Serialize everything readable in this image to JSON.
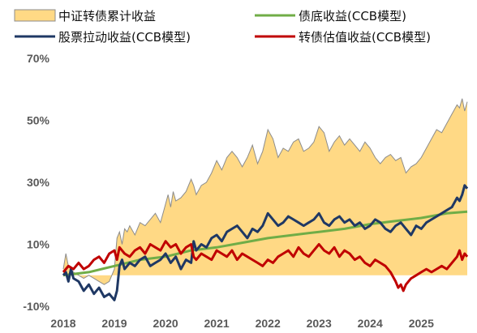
{
  "chart_data": {
    "type": "line",
    "x_ticks": [
      "2018",
      "2019",
      "2020",
      "2021",
      "2022",
      "2023",
      "2024",
      "2025"
    ],
    "y_ticks": [
      "70%",
      "50%",
      "30%",
      "10%",
      "-10%"
    ],
    "ylim": [
      -10,
      70
    ],
    "xlim": [
      2018.0,
      2025.9
    ],
    "grid": false,
    "legend_position": "top",
    "series": [
      {
        "name": "中证转债累计收益",
        "style": "area",
        "fill": "#ffd985",
        "stroke": "#8c8c8c",
        "x": [
          2018.0,
          2018.05,
          2018.1,
          2018.2,
          2018.3,
          2018.4,
          2018.5,
          2018.6,
          2018.7,
          2018.8,
          2018.9,
          2019.0,
          2019.05,
          2019.1,
          2019.15,
          2019.2,
          2019.25,
          2019.3,
          2019.4,
          2019.5,
          2019.6,
          2019.7,
          2019.8,
          2019.9,
          2020.0,
          2020.05,
          2020.1,
          2020.15,
          2020.2,
          2020.3,
          2020.4,
          2020.5,
          2020.55,
          2020.6,
          2020.7,
          2020.8,
          2020.9,
          2021.0,
          2021.1,
          2021.2,
          2021.3,
          2021.4,
          2021.5,
          2021.6,
          2021.7,
          2021.8,
          2021.9,
          2022.0,
          2022.1,
          2022.2,
          2022.3,
          2022.4,
          2022.5,
          2022.6,
          2022.7,
          2022.8,
          2022.9,
          2023.0,
          2023.1,
          2023.2,
          2023.3,
          2023.4,
          2023.5,
          2023.6,
          2023.7,
          2023.8,
          2023.9,
          2024.0,
          2024.1,
          2024.2,
          2024.3,
          2024.4,
          2024.5,
          2024.6,
          2024.7,
          2024.8,
          2024.9,
          2025.0,
          2025.1,
          2025.2,
          2025.3,
          2025.4,
          2025.5,
          2025.6,
          2025.7,
          2025.75,
          2025.8,
          2025.85,
          2025.9
        ],
        "values": [
          2,
          7,
          3,
          1,
          0,
          -1,
          0,
          -1,
          -2,
          -3,
          -2,
          2,
          12,
          14,
          10,
          15,
          14,
          16,
          13,
          17,
          16,
          18,
          20,
          17,
          23,
          26,
          22,
          27,
          24,
          25,
          27,
          31,
          29,
          26,
          29,
          30,
          33,
          37,
          34,
          38,
          40,
          38,
          35,
          38,
          42,
          36,
          40,
          47,
          44,
          38,
          41,
          40,
          43,
          44,
          40,
          41,
          43,
          48,
          46,
          40,
          43,
          45,
          42,
          44,
          42,
          40,
          43,
          41,
          38,
          36,
          38,
          39,
          37,
          38,
          33,
          35,
          36,
          38,
          41,
          44,
          47,
          46,
          49,
          52,
          55,
          54,
          57,
          53,
          56
        ]
      },
      {
        "name": "债底收益(CCB模型)",
        "style": "line",
        "color": "#70ad47",
        "x": [
          2018.0,
          2018.5,
          2019.0,
          2019.5,
          2020.0,
          2020.5,
          2021.0,
          2021.5,
          2022.0,
          2022.5,
          2023.0,
          2023.5,
          2024.0,
          2024.5,
          2025.0,
          2025.5,
          2025.9
        ],
        "values": [
          0,
          1,
          3,
          5,
          6,
          8,
          9,
          10.5,
          12,
          13,
          14,
          15,
          16.5,
          17.5,
          18.5,
          20,
          20.5
        ]
      },
      {
        "name": "股票拉动收益(CCB模型)",
        "style": "line",
        "color": "#1f3864",
        "x": [
          2018.0,
          2018.05,
          2018.1,
          2018.15,
          2018.2,
          2018.3,
          2018.4,
          2018.5,
          2018.6,
          2018.7,
          2018.8,
          2018.9,
          2019.0,
          2019.05,
          2019.1,
          2019.15,
          2019.2,
          2019.3,
          2019.4,
          2019.5,
          2019.6,
          2019.7,
          2019.8,
          2019.9,
          2020.0,
          2020.1,
          2020.2,
          2020.3,
          2020.4,
          2020.5,
          2020.55,
          2020.6,
          2020.7,
          2020.8,
          2020.9,
          2021.0,
          2021.1,
          2021.2,
          2021.3,
          2021.4,
          2021.5,
          2021.6,
          2021.7,
          2021.8,
          2021.9,
          2022.0,
          2022.1,
          2022.2,
          2022.3,
          2022.4,
          2022.5,
          2022.6,
          2022.7,
          2022.8,
          2022.9,
          2023.0,
          2023.1,
          2023.2,
          2023.3,
          2023.4,
          2023.5,
          2023.6,
          2023.7,
          2023.8,
          2023.9,
          2024.0,
          2024.1,
          2024.2,
          2024.3,
          2024.4,
          2024.5,
          2024.6,
          2024.7,
          2024.8,
          2024.9,
          2025.0,
          2025.1,
          2025.2,
          2025.3,
          2025.4,
          2025.5,
          2025.6,
          2025.7,
          2025.75,
          2025.8,
          2025.85,
          2025.9
        ],
        "values": [
          0,
          1,
          -2,
          2,
          -1,
          -2,
          -5,
          -3,
          -6,
          -4,
          -7,
          -6,
          -8,
          -5,
          3,
          5,
          2,
          4,
          3,
          5,
          6,
          3,
          4,
          5,
          7,
          4,
          6,
          2,
          5,
          4,
          11,
          8,
          10,
          9,
          12,
          13,
          11,
          14,
          15,
          16,
          14,
          12,
          15,
          14,
          16,
          20,
          18,
          16,
          17,
          19,
          18,
          17,
          16,
          17,
          18,
          20,
          17,
          16,
          18,
          19,
          17,
          18,
          16,
          17,
          15,
          16,
          18,
          17,
          15,
          14,
          16,
          17,
          15,
          13,
          16,
          15,
          17,
          18,
          19,
          20,
          21,
          22,
          25,
          24,
          26,
          29,
          28
        ]
      },
      {
        "name": "转债估值收益(CCB模型)",
        "style": "line",
        "color": "#c00000",
        "x": [
          2018.0,
          2018.05,
          2018.1,
          2018.2,
          2018.3,
          2018.4,
          2018.5,
          2018.6,
          2018.7,
          2018.8,
          2018.9,
          2019.0,
          2019.05,
          2019.1,
          2019.2,
          2019.3,
          2019.4,
          2019.5,
          2019.6,
          2019.7,
          2019.8,
          2019.9,
          2020.0,
          2020.1,
          2020.2,
          2020.3,
          2020.4,
          2020.5,
          2020.55,
          2020.6,
          2020.7,
          2020.8,
          2020.9,
          2021.0,
          2021.1,
          2021.2,
          2021.3,
          2021.4,
          2021.5,
          2021.6,
          2021.7,
          2021.8,
          2021.9,
          2022.0,
          2022.1,
          2022.2,
          2022.3,
          2022.4,
          2022.5,
          2022.6,
          2022.7,
          2022.8,
          2022.9,
          2023.0,
          2023.1,
          2023.2,
          2023.3,
          2023.4,
          2023.5,
          2023.6,
          2023.7,
          2023.8,
          2023.9,
          2024.0,
          2024.1,
          2024.2,
          2024.3,
          2024.4,
          2024.5,
          2024.55,
          2024.6,
          2024.65,
          2024.7,
          2024.8,
          2024.9,
          2025.0,
          2025.1,
          2025.2,
          2025.3,
          2025.4,
          2025.5,
          2025.6,
          2025.7,
          2025.75,
          2025.8,
          2025.85,
          2025.9
        ],
        "values": [
          1,
          2,
          3,
          2,
          4,
          2,
          3,
          5,
          6,
          4,
          7,
          8,
          5,
          9,
          7,
          6,
          8,
          9,
          7,
          10,
          9,
          8,
          11,
          9,
          10,
          7,
          9,
          10,
          6,
          5,
          7,
          6,
          5,
          8,
          7,
          6,
          8,
          5,
          7,
          6,
          5,
          4,
          3,
          5,
          4,
          6,
          7,
          8,
          6,
          9,
          7,
          6,
          8,
          10,
          8,
          7,
          9,
          6,
          8,
          7,
          5,
          6,
          4,
          3,
          5,
          4,
          3,
          1,
          -2,
          -4,
          -3,
          -5,
          -3,
          -1,
          0,
          1,
          2,
          1,
          2,
          3,
          2,
          4,
          6,
          8,
          5,
          7,
          6
        ]
      }
    ]
  }
}
